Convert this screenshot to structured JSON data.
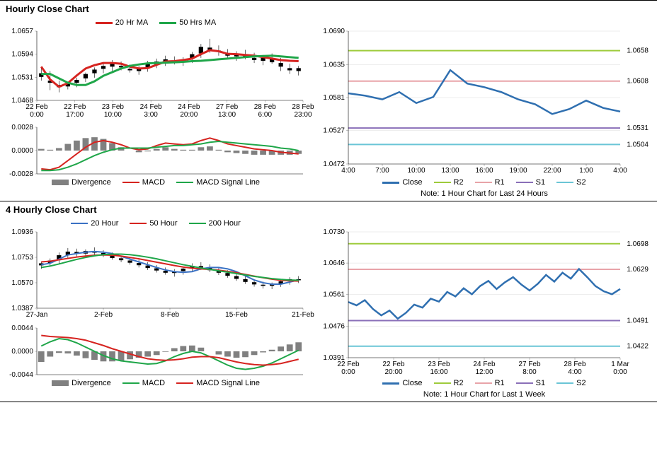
{
  "sections": {
    "hourly": {
      "title": "Hourly Close Chart",
      "price_chart": {
        "type": "candlestick+line",
        "legend": [
          {
            "label": "20 Hr MA",
            "color": "#d62420",
            "width": 3
          },
          {
            "label": "50 Hrs MA",
            "color": "#1fa649",
            "width": 3
          }
        ],
        "y_ticks": [
          1.0468,
          1.0531,
          1.0594,
          1.0657
        ],
        "x_ticks": [
          "22 Feb 0:00",
          "22 Feb 17:00",
          "23 Feb 10:00",
          "24 Feb 3:00",
          "24 Feb 20:00",
          "27 Feb 13:00",
          "28 Feb 6:00",
          "28 Feb 23:00"
        ],
        "ma20": [
          1.056,
          1.0525,
          1.0505,
          1.0515,
          1.0536,
          1.0555,
          1.0564,
          1.057,
          1.057,
          1.0568,
          1.056,
          1.0555,
          1.0556,
          1.0565,
          1.0574,
          1.0575,
          1.0578,
          1.0582,
          1.0594,
          1.0605,
          1.0602,
          1.0595,
          1.0594,
          1.0592,
          1.059,
          1.0586,
          1.0582,
          1.0578,
          1.0576,
          1.0575
        ],
        "ma50": [
          1.054,
          1.054,
          1.0528,
          1.0516,
          1.051,
          1.051,
          1.052,
          1.0535,
          1.0545,
          1.0555,
          1.0562,
          1.0566,
          1.0569,
          1.057,
          1.0571,
          1.0572,
          1.0573,
          1.0575,
          1.0576,
          1.0578,
          1.058,
          1.0582,
          1.0584,
          1.0586,
          1.0588,
          1.0589,
          1.059,
          1.0588,
          1.0586,
          1.0584
        ],
        "candles": [
          [
            1.056,
            1.0532,
            1.0522,
            1.0542
          ],
          [
            1.0548,
            1.0522,
            1.0496,
            1.0516
          ],
          [
            1.0522,
            1.0504,
            1.049,
            1.051
          ],
          [
            1.0518,
            1.0506,
            1.0498,
            1.0514
          ],
          [
            1.053,
            1.0516,
            1.0504,
            1.0524
          ],
          [
            1.0544,
            1.0528,
            1.0518,
            1.054
          ],
          [
            1.0558,
            1.0542,
            1.053,
            1.0552
          ],
          [
            1.057,
            1.0554,
            1.0542,
            1.0562
          ],
          [
            1.0578,
            1.056,
            1.0548,
            1.057
          ],
          [
            1.0574,
            1.0562,
            1.055,
            1.0558
          ],
          [
            1.0566,
            1.0554,
            1.0544,
            1.055
          ],
          [
            1.0562,
            1.0548,
            1.0538,
            1.0556
          ],
          [
            1.0576,
            1.0556,
            1.0546,
            1.0568
          ],
          [
            1.0582,
            1.0566,
            1.0556,
            1.0574
          ],
          [
            1.059,
            1.0574,
            1.0562,
            1.058
          ],
          [
            1.0588,
            1.0576,
            1.0566,
            1.0572
          ],
          [
            1.0586,
            1.0574,
            1.0562,
            1.058
          ],
          [
            1.06,
            1.0582,
            1.057,
            1.0594
          ],
          [
            1.0622,
            1.0596,
            1.0584,
            1.0614
          ],
          [
            1.0636,
            1.0612,
            1.0598,
            1.0606
          ],
          [
            1.0618,
            1.0604,
            1.059,
            1.06
          ],
          [
            1.0608,
            1.0596,
            1.0584,
            1.059
          ],
          [
            1.0602,
            1.0588,
            1.0576,
            1.0594
          ],
          [
            1.0606,
            1.0592,
            1.058,
            1.0586
          ],
          [
            1.0598,
            1.0584,
            1.057,
            1.0578
          ],
          [
            1.0592,
            1.0576,
            1.0564,
            1.0584
          ],
          [
            1.0596,
            1.0582,
            1.0568,
            1.0572
          ],
          [
            1.0584,
            1.057,
            1.0548,
            1.056
          ],
          [
            1.0568,
            1.0556,
            1.054,
            1.055
          ],
          [
            1.0562,
            1.0548,
            1.0536,
            1.0556
          ]
        ],
        "candle_color": "#000000",
        "border_color": "#000000",
        "grid_color": "#cccccc"
      },
      "macd_chart": {
        "type": "macd",
        "legend": [
          {
            "label": "Divergence",
            "color": "#808080",
            "style": "bar"
          },
          {
            "label": "MACD",
            "color": "#d62420",
            "style": "line",
            "width": 2
          },
          {
            "label": "MACD Signal Line",
            "color": "#1fa649",
            "style": "line",
            "width": 2
          }
        ],
        "y_ticks": [
          -0.0028,
          0.0,
          0.0028
        ],
        "macd": [
          -0.0022,
          -0.0023,
          -0.002,
          -0.0012,
          -0.0004,
          0.0004,
          0.001,
          0.0012,
          0.001,
          0.0007,
          0.0003,
          0.0001,
          0.0002,
          0.0006,
          0.0009,
          0.0008,
          0.0007,
          0.0008,
          0.0012,
          0.0015,
          0.0012,
          0.0008,
          0.0006,
          0.0004,
          0.0002,
          0.0001,
          0.0,
          -0.0002,
          -0.0003,
          -0.0004
        ],
        "signal": [
          -0.0024,
          -0.0024,
          -0.0023,
          -0.002,
          -0.0016,
          -0.0011,
          -0.0006,
          -0.0002,
          0.0001,
          0.0003,
          0.0003,
          0.0003,
          0.0003,
          0.0004,
          0.0005,
          0.0006,
          0.0006,
          0.0007,
          0.0008,
          0.001,
          0.0011,
          0.001,
          0.0009,
          0.0008,
          0.0007,
          0.0006,
          0.0005,
          0.0003,
          0.0002,
          0.0
        ],
        "hist": [
          0.0002,
          0.0001,
          0.0003,
          0.0008,
          0.0012,
          0.0015,
          0.0016,
          0.0014,
          0.0009,
          0.0004,
          0.0,
          -0.0002,
          -0.0001,
          0.0002,
          0.0004,
          0.0002,
          0.0001,
          0.0001,
          0.0004,
          0.0005,
          0.0001,
          -0.0002,
          -0.0003,
          -0.0004,
          -0.0005,
          -0.0005,
          -0.0005,
          -0.0005,
          -0.0005,
          -0.0004
        ],
        "bar_color": "#808080"
      },
      "sr_chart": {
        "type": "line+levels",
        "y_ticks": [
          1.0472,
          1.0527,
          1.0581,
          1.0635,
          1.069
        ],
        "x_ticks": [
          "4:00",
          "7:00",
          "10:00",
          "13:00",
          "16:00",
          "19:00",
          "22:00",
          "1:00",
          "4:00"
        ],
        "close_color": "#2f6fb0",
        "close": [
          1.0588,
          1.0584,
          1.0578,
          1.059,
          1.0572,
          1.0582,
          1.0626,
          1.0604,
          1.0598,
          1.059,
          1.0578,
          1.057,
          1.0554,
          1.0562,
          1.0576,
          1.0564,
          1.0558
        ],
        "levels": [
          {
            "name": "R2",
            "value": 1.0658,
            "color": "#9ecb3c"
          },
          {
            "name": "R1",
            "value": 1.0608,
            "color": "#e8a3a8"
          },
          {
            "name": "S1",
            "value": 1.0531,
            "color": "#8a6fb8"
          },
          {
            "name": "S2",
            "value": 1.0504,
            "color": "#6ac5d6"
          }
        ],
        "legend": [
          {
            "label": "Close",
            "color": "#2f6fb0",
            "width": 3
          },
          {
            "label": "R2",
            "color": "#9ecb3c",
            "width": 2
          },
          {
            "label": "R1",
            "color": "#e8a3a8",
            "width": 2
          },
          {
            "label": "S1",
            "color": "#8a6fb8",
            "width": 2
          },
          {
            "label": "S2",
            "color": "#6ac5d6",
            "width": 2
          }
        ],
        "note": "Note: 1 Hour Chart for Last 24 Hours"
      }
    },
    "fourhourly": {
      "title": "4 Hourly Close Chart",
      "price_chart": {
        "type": "candlestick+line",
        "legend": [
          {
            "label": "20 Hour",
            "color": "#3b72c4",
            "width": 2
          },
          {
            "label": "50 Hour",
            "color": "#d62420",
            "width": 2
          },
          {
            "label": "200 Hour",
            "color": "#1fa649",
            "width": 2
          }
        ],
        "y_ticks": [
          1.0387,
          1.057,
          1.0753,
          1.0936
        ],
        "x_ticks": [
          "27-Jan",
          "2-Feb",
          "8-Feb",
          "15-Feb",
          "21-Feb"
        ],
        "ma20": [
          1.07,
          1.071,
          1.074,
          1.077,
          1.078,
          1.079,
          1.0795,
          1.079,
          1.078,
          1.076,
          1.074,
          1.072,
          1.07,
          1.068,
          1.0662,
          1.065,
          1.0645,
          1.065,
          1.067,
          1.068,
          1.068,
          1.067,
          1.065,
          1.062,
          1.059,
          1.057,
          1.056,
          1.056,
          1.0575,
          1.059
        ],
        "ma50": [
          1.072,
          1.0725,
          1.0735,
          1.0745,
          1.0755,
          1.0762,
          1.0768,
          1.077,
          1.0768,
          1.0762,
          1.0752,
          1.0742,
          1.073,
          1.0718,
          1.0706,
          1.0694,
          1.0683,
          1.0675,
          1.067,
          1.0666,
          1.066,
          1.0652,
          1.0642,
          1.063,
          1.0618,
          1.0606,
          1.0596,
          1.0588,
          1.0584,
          1.0582
        ],
        "ma200": [
          1.068,
          1.069,
          1.0705,
          1.0722,
          1.0738,
          1.0752,
          1.0764,
          1.0772,
          1.0776,
          1.0776,
          1.0772,
          1.0764,
          1.0754,
          1.0742,
          1.0728,
          1.0714,
          1.07,
          1.0688,
          1.0676,
          1.0666,
          1.0656,
          1.0646,
          1.0636,
          1.0626,
          1.0616,
          1.0608,
          1.06,
          1.0594,
          1.059,
          1.0588
        ],
        "candles": [
          [
            1.072,
            1.0695,
            1.067,
            1.071
          ],
          [
            1.0745,
            1.0712,
            1.0688,
            1.073
          ],
          [
            1.0788,
            1.0732,
            1.071,
            1.0768
          ],
          [
            1.082,
            1.077,
            1.0742,
            1.0794
          ],
          [
            1.0815,
            1.0792,
            1.076,
            1.078
          ],
          [
            1.081,
            1.078,
            1.0752,
            1.0798
          ],
          [
            1.0824,
            1.0798,
            1.077,
            1.0786
          ],
          [
            1.0804,
            1.0784,
            1.0754,
            1.0768
          ],
          [
            1.0788,
            1.0766,
            1.0736,
            1.0748
          ],
          [
            1.0766,
            1.0746,
            1.0718,
            1.0732
          ],
          [
            1.0752,
            1.073,
            1.07,
            1.0714
          ],
          [
            1.0736,
            1.0712,
            1.068,
            1.0696
          ],
          [
            1.0718,
            1.0694,
            1.0662,
            1.0676
          ],
          [
            1.0698,
            1.0674,
            1.0644,
            1.0658
          ],
          [
            1.068,
            1.0656,
            1.0628,
            1.0642
          ],
          [
            1.0668,
            1.064,
            1.0614,
            1.0652
          ],
          [
            1.0686,
            1.0654,
            1.0628,
            1.0672
          ],
          [
            1.071,
            1.0674,
            1.065,
            1.0692
          ],
          [
            1.0718,
            1.069,
            1.0662,
            1.068
          ],
          [
            1.0702,
            1.0678,
            1.0646,
            1.066
          ],
          [
            1.0682,
            1.0658,
            1.0626,
            1.0642
          ],
          [
            1.066,
            1.064,
            1.0606,
            1.062
          ],
          [
            1.064,
            1.0618,
            1.0584,
            1.0598
          ],
          [
            1.0618,
            1.0596,
            1.0562,
            1.0576
          ],
          [
            1.0596,
            1.0574,
            1.0542,
            1.0558
          ],
          [
            1.0578,
            1.0556,
            1.0528,
            1.0548
          ],
          [
            1.0572,
            1.0548,
            1.0524,
            1.0562
          ],
          [
            1.0594,
            1.0564,
            1.054,
            1.058
          ],
          [
            1.061,
            1.0582,
            1.0556,
            1.0596
          ],
          [
            1.0618,
            1.0596,
            1.0568,
            1.0588
          ]
        ],
        "candle_color": "#000000"
      },
      "macd_chart": {
        "type": "macd",
        "legend": [
          {
            "label": "Divergence",
            "color": "#808080",
            "style": "bar"
          },
          {
            "label": "MACD",
            "color": "#1fa649",
            "style": "line",
            "width": 2
          },
          {
            "label": "MACD Signal Line",
            "color": "#d62420",
            "style": "line",
            "width": 2
          }
        ],
        "y_ticks": [
          -0.0044,
          0.0,
          0.0044
        ],
        "macd": [
          0.001,
          0.0018,
          0.0024,
          0.0022,
          0.0016,
          0.0008,
          0.0,
          -0.0008,
          -0.0014,
          -0.0018,
          -0.002,
          -0.0022,
          -0.0024,
          -0.0023,
          -0.0018,
          -0.001,
          -0.0004,
          0.0,
          -0.0003,
          -0.001,
          -0.0018,
          -0.0026,
          -0.0032,
          -0.0034,
          -0.0032,
          -0.0028,
          -0.0022,
          -0.0014,
          -0.0006,
          0.0002
        ],
        "signal": [
          0.003,
          0.0028,
          0.0027,
          0.0026,
          0.0024,
          0.0021,
          0.0016,
          0.0011,
          0.0005,
          0.0,
          -0.0005,
          -0.001,
          -0.0014,
          -0.0016,
          -0.0017,
          -0.0016,
          -0.0014,
          -0.0011,
          -0.001,
          -0.001,
          -0.0012,
          -0.0016,
          -0.002,
          -0.0023,
          -0.0025,
          -0.0026,
          -0.0025,
          -0.0023,
          -0.0019,
          -0.0015
        ],
        "hist": [
          -0.002,
          -0.001,
          -0.0003,
          -0.0004,
          -0.0008,
          -0.0013,
          -0.0016,
          -0.0019,
          -0.0019,
          -0.0018,
          -0.0015,
          -0.0012,
          -0.001,
          -0.0007,
          -0.0001,
          0.0006,
          0.001,
          0.0011,
          0.0007,
          0.0,
          -0.0006,
          -0.001,
          -0.0012,
          -0.0011,
          -0.0007,
          -0.0002,
          0.0003,
          0.0009,
          0.0013,
          0.0017
        ],
        "bar_color": "#808080"
      },
      "sr_chart": {
        "type": "line+levels",
        "y_ticks": [
          1.0391,
          1.0476,
          1.0561,
          1.0646,
          1.073
        ],
        "x_ticks": [
          "22 Feb 0:00",
          "22 Feb 20:00",
          "23 Feb 16:00",
          "24 Feb 12:00",
          "27 Feb 8:00",
          "28 Feb 4:00",
          "1 Mar 0:00"
        ],
        "close_color": "#2f6fb0",
        "close": [
          1.0541,
          1.0532,
          1.0546,
          1.0522,
          1.0505,
          1.0518,
          1.0496,
          1.0512,
          1.0534,
          1.0526,
          1.055,
          1.0542,
          1.0568,
          1.0556,
          1.0578,
          1.0562,
          1.0584,
          1.0598,
          1.0576,
          1.0594,
          1.0608,
          1.0588,
          1.0572,
          1.059,
          1.0614,
          1.0596,
          1.062,
          1.0604,
          1.063,
          1.0608,
          1.0584,
          1.057,
          1.0562,
          1.0576
        ],
        "levels": [
          {
            "name": "R2",
            "value": 1.0698,
            "color": "#9ecb3c"
          },
          {
            "name": "R1",
            "value": 1.0629,
            "color": "#e8a3a8"
          },
          {
            "name": "S1",
            "value": 1.0491,
            "color": "#8a6fb8"
          },
          {
            "name": "S2",
            "value": 1.0422,
            "color": "#6ac5d6"
          }
        ],
        "legend": [
          {
            "label": "Close",
            "color": "#2f6fb0",
            "width": 3
          },
          {
            "label": "R2",
            "color": "#9ecb3c",
            "width": 2
          },
          {
            "label": "R1",
            "color": "#e8a3a8",
            "width": 2
          },
          {
            "label": "S1",
            "color": "#8a6fb8",
            "width": 2
          },
          {
            "label": "S2",
            "color": "#6ac5d6",
            "width": 2
          }
        ],
        "note": "Note: 1 Hour Chart for Last 1 Week"
      }
    }
  }
}
